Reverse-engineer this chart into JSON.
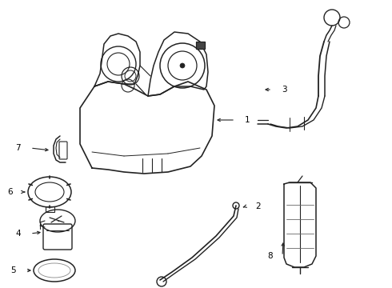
{
  "background_color": "#ffffff",
  "line_color": "#222222",
  "fig_width": 4.9,
  "fig_height": 3.6,
  "dpi": 100
}
